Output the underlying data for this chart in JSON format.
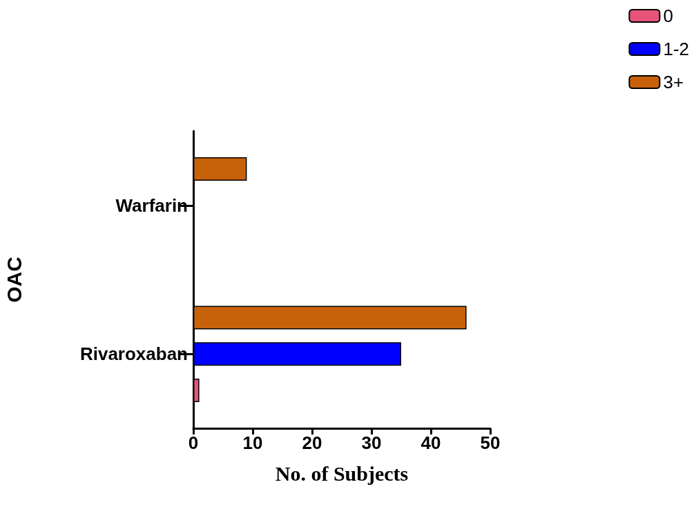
{
  "chart_data": {
    "type": "bar",
    "orientation": "horizontal",
    "xlabel": "No. of Subjects",
    "ylabel": "OAC",
    "categories": [
      "Warfarin",
      "Rivaroxaban"
    ],
    "series": [
      {
        "name": "0",
        "color": "#e8537a",
        "values": [
          null,
          1
        ]
      },
      {
        "name": "1-2",
        "color": "#0000ff",
        "values": [
          null,
          35
        ]
      },
      {
        "name": "3+",
        "color": "#c8620a",
        "values": [
          9,
          46
        ]
      }
    ],
    "xlim": [
      0,
      50
    ],
    "xticks": [
      0,
      10,
      20,
      30,
      40,
      50
    ],
    "grid": false,
    "legend": "top right"
  }
}
